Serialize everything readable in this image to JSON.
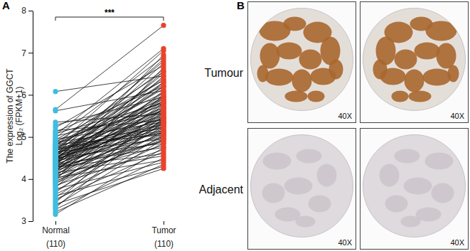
{
  "chart_data": {
    "type": "paired_dot",
    "panel_label": "A",
    "y_label": [
      "The expression of GGCT",
      "Log₂ (FPKM+1)"
    ],
    "annotation": "***",
    "ylim": [
      3,
      8
    ],
    "yticks": [
      3,
      4,
      5,
      6,
      7,
      8
    ],
    "groups": [
      {
        "category": "Normal",
        "count": {
          "value": 110,
          "label": "(110)"
        },
        "color": "#3fbde0",
        "values": [
          6.08,
          5.65,
          5.62,
          5.35,
          5.28,
          5.22,
          5.15,
          5.12,
          5.08,
          5.05,
          5.02,
          4.98,
          4.95,
          4.93,
          4.9,
          4.88,
          4.86,
          4.84,
          4.82,
          4.8,
          4.78,
          4.76,
          4.75,
          4.73,
          4.72,
          4.7,
          4.68,
          4.67,
          4.65,
          4.64,
          4.62,
          4.61,
          4.6,
          4.58,
          4.57,
          4.56,
          4.55,
          4.53,
          4.52,
          4.51,
          4.5,
          4.48,
          4.47,
          4.46,
          4.45,
          4.44,
          4.42,
          4.41,
          4.4,
          4.39,
          4.38,
          4.36,
          4.35,
          4.34,
          4.33,
          4.31,
          4.3,
          4.29,
          4.28,
          4.26,
          4.25,
          4.24,
          4.22,
          4.21,
          4.2,
          4.18,
          4.17,
          4.15,
          4.14,
          4.12,
          4.1,
          4.08,
          4.06,
          4.05,
          4.03,
          4.01,
          3.99,
          3.97,
          3.95,
          3.93,
          3.9,
          3.88,
          3.85,
          3.82,
          3.8,
          3.76,
          3.72,
          3.68,
          3.64,
          3.6,
          3.56,
          3.52,
          3.48,
          3.44,
          3.4,
          3.36,
          3.32,
          3.28,
          3.22,
          3.16,
          4.6,
          4.48,
          4.35,
          4.7,
          4.55,
          4.43,
          4.28,
          4.8,
          4.52,
          4.66
        ]
      },
      {
        "category": "Tumor",
        "count": {
          "value": 110,
          "label": "(110)"
        },
        "color": "#e8432d",
        "values": [
          6.45,
          7.65,
          6.1,
          5.55,
          5.95,
          6.7,
          5.4,
          6.2,
          5.8,
          7.1,
          5.6,
          6.9,
          5.35,
          6.35,
          5.75,
          5.2,
          6.55,
          5.9,
          5.05,
          6.05,
          7.05,
          5.5,
          6.25,
          5.15,
          5.85,
          6.6,
          5.3,
          5.7,
          6.4,
          4.95,
          5.65,
          6.15,
          5.45,
          6.85,
          5.25,
          5.95,
          6.3,
          5.1,
          5.55,
          6.0,
          4.85,
          5.8,
          6.5,
          5.35,
          5.6,
          6.75,
          5.0,
          5.9,
          5.4,
          6.2,
          5.7,
          5.15,
          6.05,
          4.75,
          5.5,
          6.95,
          5.25,
          5.85,
          4.6,
          5.45,
          6.3,
          5.05,
          5.65,
          4.9,
          5.95,
          5.35,
          6.45,
          4.55,
          5.75,
          5.2,
          5.55,
          4.8,
          6.1,
          5.3,
          4.45,
          5.8,
          5.1,
          6.65,
          4.95,
          5.4,
          5.0,
          5.6,
          4.7,
          5.25,
          6.0,
          4.4,
          5.15,
          5.5,
          4.85,
          4.3,
          5.35,
          4.65,
          5.05,
          5.7,
          4.25,
          4.95,
          5.45,
          4.5,
          4.35,
          4.75,
          5.85,
          5.3,
          6.55,
          5.1,
          6.2,
          5.65,
          4.9,
          6.35,
          5.45,
          6.8
        ]
      }
    ]
  },
  "ihc_panel": {
    "label": "B",
    "rows": [
      {
        "label": "Tumour",
        "magnifications": [
          "40X",
          "40X"
        ]
      },
      {
        "label": "Adjacent",
        "magnifications": [
          "40X",
          "40X"
        ]
      }
    ]
  }
}
